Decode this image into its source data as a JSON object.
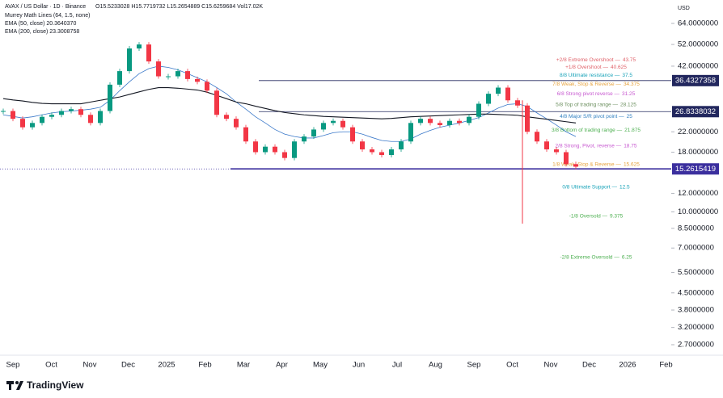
{
  "header": {
    "symbol": "AVAX / US Dollar · 1D · Binance",
    "ohlc": "O15.5233028 H15.7719732 L15.2654889 C15.6259684 Vol17.02K",
    "indicators": [
      "Murrey Math Lines (64, 1.5, none)",
      "EMA (50, close) 20.3640370",
      "EMA (200, close) 23.3008758"
    ],
    "currency": "USD",
    "brand": "TradingView"
  },
  "chart_data": {
    "type": "candlestick",
    "log_scale": true,
    "ylim": [
      2.435,
      80.6
    ],
    "yticks": [
      {
        "value": 64,
        "label": "64.0000000"
      },
      {
        "value": 52,
        "label": "52.0000000"
      },
      {
        "value": 42,
        "label": "42.0000000"
      },
      {
        "value": 22,
        "label": "22.0000000"
      },
      {
        "value": 18,
        "label": "18.0000000"
      },
      {
        "value": 12,
        "label": "12.0000000"
      },
      {
        "value": 10,
        "label": "10.0000000"
      },
      {
        "value": 8.5,
        "label": "8.5000000"
      },
      {
        "value": 7,
        "label": "7.0000000"
      },
      {
        "value": 5.5,
        "label": "5.5000000"
      },
      {
        "value": 4.5,
        "label": "4.5000000"
      },
      {
        "value": 3.8,
        "label": "3.8000000"
      },
      {
        "value": 3.2,
        "label": "3.2000000"
      },
      {
        "value": 2.7,
        "label": "2.7000000"
      }
    ],
    "time_labels": [
      "Sep",
      "Oct",
      "Nov",
      "Dec",
      "2025",
      "Feb",
      "Mar",
      "Apr",
      "May",
      "Jun",
      "Jul",
      "Aug",
      "Sep",
      "Oct",
      "Nov",
      "Dec",
      "2026",
      "Feb"
    ],
    "up_color": "#089981",
    "down_color": "#f23645",
    "close": [
      27,
      25,
      23,
      24,
      25.5,
      26,
      27,
      27.5,
      26,
      24,
      27,
      35,
      40,
      50,
      52,
      44,
      38,
      38,
      40,
      37,
      36,
      33,
      26,
      25,
      23,
      20,
      18,
      19,
      18,
      17,
      20,
      21,
      22.5,
      24,
      24.5,
      23,
      20,
      18.5,
      18,
      17.5,
      18.5,
      20,
      24,
      25,
      24,
      23.5,
      24.5,
      24,
      25.5,
      29,
      32,
      34,
      30,
      28.5,
      22,
      20,
      18.5,
      18,
      16,
      15.6
    ],
    "spike": {
      "high": 30,
      "low": 8.9
    },
    "series": [
      {
        "name": "EMA (50, close)",
        "color": "#3a78c9",
        "values": [
          26,
          25.6,
          25.2,
          25.5,
          26,
          26.5,
          26.8,
          27,
          27.2,
          27.5,
          28,
          30,
          33,
          36,
          39,
          41,
          42,
          41.5,
          40.5,
          39,
          37.5,
          36,
          34,
          32,
          29.5,
          27.5,
          25.5,
          24,
          22.5,
          21.5,
          21,
          20.7,
          20.7,
          21.2,
          21.8,
          22,
          22,
          21.5,
          20.8,
          20.2,
          20,
          20,
          20.5,
          21.5,
          22.3,
          23,
          23.5,
          24,
          24.6,
          25.3,
          26.5,
          27.8,
          28.8,
          29,
          28.2,
          26.5,
          25,
          23.5,
          22,
          21
        ]
      },
      {
        "name": "EMA (200, close)",
        "color": "#131722",
        "values": [
          30.5,
          30.1,
          29.8,
          29.4,
          29.1,
          29,
          29,
          29,
          29,
          29.5,
          30,
          30.5,
          31,
          31.8,
          32.6,
          33.4,
          34,
          34,
          33.8,
          33.5,
          33.2,
          32.5,
          31.5,
          30.5,
          29.5,
          29,
          28.3,
          27.7,
          27.1,
          26.6,
          26.3,
          26,
          25.8,
          25.6,
          25.5,
          25.4,
          25.3,
          25.2,
          25.1,
          25,
          25.1,
          25.3,
          25.5,
          25.6,
          25.7,
          25.8,
          25.9,
          26,
          26.1,
          26.2,
          26.2,
          26.1,
          26,
          25.9,
          25.5,
          25.2,
          24.9,
          24.6,
          24.3,
          24
        ]
      }
    ],
    "price_lines": [
      {
        "value": 36.4327358,
        "label": "36.4327358",
        "color": "#22275e"
      },
      {
        "value": 26.8338032,
        "label": "26.8338032",
        "color": "#22275e"
      },
      {
        "value": 15.2615419,
        "label": "15.2615419",
        "color": "#3b2f9e"
      }
    ],
    "murrey_levels": [
      {
        "name": "+2/8 Extreme Overshoot —",
        "value": 43.75,
        "color": "#e0626a"
      },
      {
        "name": "+1/8 Overshoot —",
        "value": 40.625,
        "color": "#e0626a"
      },
      {
        "name": "8/8 Ultimate resistance —",
        "value": 37.5,
        "color": "#17a2b8"
      },
      {
        "name": "7/8 Weak, Stop & Reverse —",
        "value": 34.375,
        "color": "#e6a23c"
      },
      {
        "name": "6/8 Strong pivot reverse —",
        "value": 31.25,
        "color": "#c758d0"
      },
      {
        "name": "5/8 Top of trading range —",
        "value": 28.125,
        "color": "#6b8f5e"
      },
      {
        "name": "4/8 Major S/R pivot point —",
        "value": 25,
        "color": "#2f7fc0"
      },
      {
        "name": "3/8 Bottom of trading range —",
        "value": 21.875,
        "color": "#4caf50"
      },
      {
        "name": "2/8 Strong, Pivot, reverse —",
        "value": 18.75,
        "color": "#c758d0"
      },
      {
        "name": "1/8 Weak, Stop & Reverse —",
        "value": 15.625,
        "color": "#e6a23c"
      },
      {
        "name": "0/8 Ultimate Support —",
        "value": 12.5,
        "color": "#17a2b8"
      },
      {
        "name": "-1/8 Oversold —",
        "value": 9.375,
        "color": "#4caf50"
      },
      {
        "name": "-2/8 Extreme Oversold —",
        "value": 6.25,
        "color": "#4caf50"
      }
    ]
  }
}
